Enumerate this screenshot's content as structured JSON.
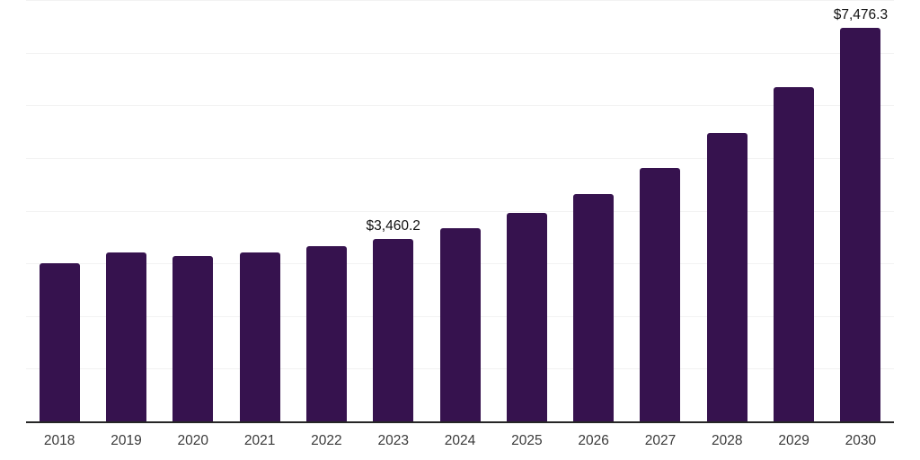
{
  "chart_data": {
    "type": "bar",
    "title": "",
    "xlabel": "",
    "ylabel": "",
    "categories": [
      "2018",
      "2019",
      "2020",
      "2021",
      "2022",
      "2023",
      "2024",
      "2025",
      "2026",
      "2027",
      "2028",
      "2029",
      "2030"
    ],
    "values": [
      3000,
      3210,
      3140,
      3215,
      3330,
      3460.2,
      3675,
      3950,
      4310,
      4815,
      5475,
      6340,
      7476.3
    ],
    "data_labels": {
      "2023": "$3,460.2",
      "2030": "$7,476.3"
    },
    "ylim": [
      0,
      8000
    ],
    "gridline_step": 1000,
    "grid": true,
    "legend": false,
    "colors": {
      "bar": "#36124E",
      "axis_line": "#262626",
      "gridline": "#F2F2F2",
      "data_label": "#111111",
      "tick_label": "#3A3A3A",
      "background": "#FFFFFF"
    }
  }
}
